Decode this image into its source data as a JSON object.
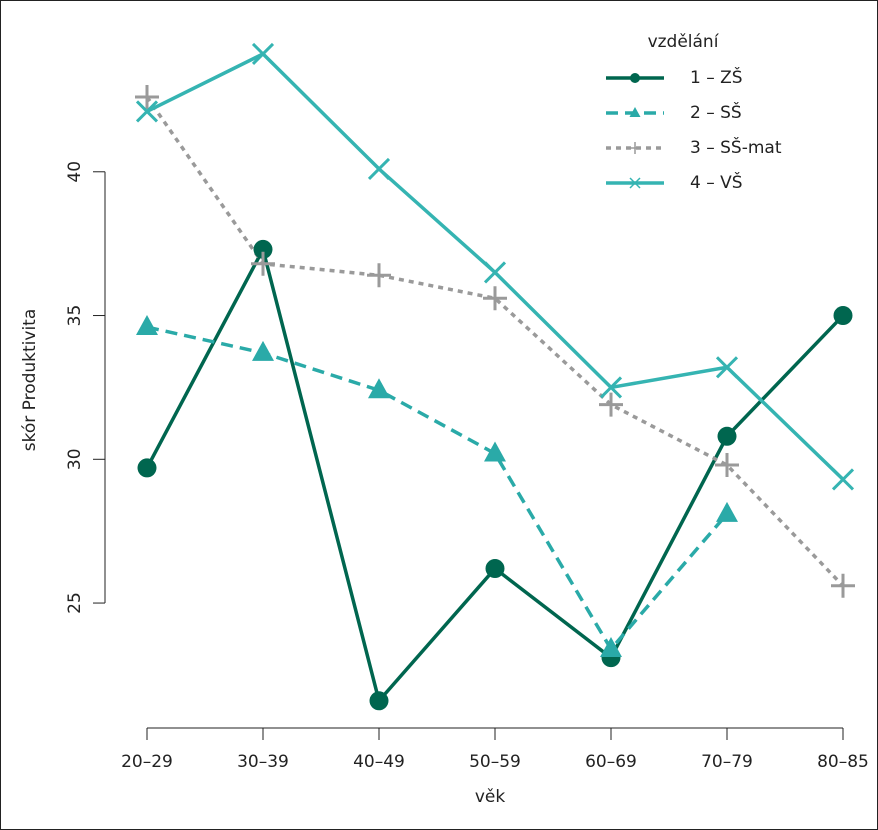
{
  "chart_data": {
    "type": "line",
    "x_label": "věk",
    "y_label": "skór Produktivita",
    "categories": [
      "20–29",
      "30–39",
      "40–49",
      "50–59",
      "60–69",
      "70–79",
      "80–85"
    ],
    "series": [
      {
        "name": "1 – ZŠ",
        "color": "#00664f",
        "marker": "circle",
        "dash": "solid",
        "values": [
          29.7,
          37.3,
          21.6,
          26.2,
          23.1,
          30.8,
          35.0
        ]
      },
      {
        "name": "2 – SŠ",
        "color": "#2aaaa8",
        "marker": "triangle",
        "dash": "dashed",
        "values": [
          34.6,
          33.7,
          32.4,
          30.2,
          23.4,
          28.1,
          null
        ]
      },
      {
        "name": "3 – SŠ-mat",
        "color": "#9a9a9a",
        "marker": "plus",
        "dash": "dotted",
        "values": [
          42.6,
          36.8,
          36.4,
          35.6,
          31.9,
          29.8,
          25.6
        ]
      },
      {
        "name": "4 – VŠ",
        "color": "#35b4b2",
        "marker": "cross",
        "dash": "solid",
        "values": [
          42.1,
          44.1,
          40.1,
          36.5,
          32.5,
          33.2,
          29.3
        ]
      }
    ],
    "ylim": [
      21.2,
      45.3
    ],
    "yticks": [
      25,
      30,
      35,
      40
    ],
    "legend": "top-right",
    "legend_title": "vzdělání",
    "grid": false
  }
}
